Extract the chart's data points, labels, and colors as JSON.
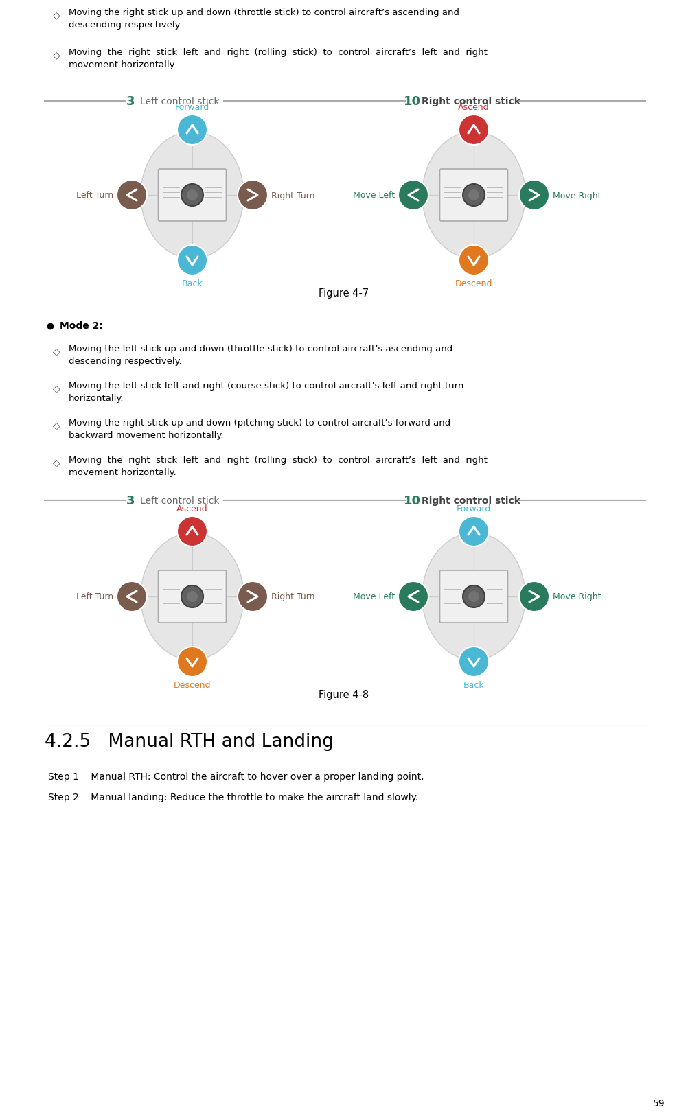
{
  "bg_color": "#ffffff",
  "page_number": "59",
  "text_color": "#000000",
  "figure47_caption": "Figure 4-7",
  "figure48_caption": "Figure 4-8",
  "mode2_label": "Mode 2:",
  "section_title": "4.2.5   Manual RTH and Landing",
  "step1": "Step 1    Manual RTH: Control the aircraft to hover over a proper landing point.",
  "step2": "Step 2    Manual landing: Reduce the throttle to make the aircraft land slowly.",
  "bullet_items_top": [
    [
      "Moving the right stick up and down (throttle stick) to control aircraft’s ascending and",
      "descending respectively."
    ],
    [
      "Moving  the  right  stick  left  and  right  (rolling  stick)  to  control  aircraft’s  left  and  right",
      "movement horizontally."
    ]
  ],
  "bullet_items_mode2": [
    [
      "Moving the left stick up and down (throttle stick) to control aircraft’s ascending and",
      "descending respectively."
    ],
    [
      "Moving the left stick left and right (course stick) to control aircraft’s left and right turn",
      "horizontally."
    ],
    [
      "Moving the right stick up and down (pitching stick) to control aircraft’s forward and",
      "backward movement horizontally."
    ],
    [
      "Moving  the  right  stick  left  and  right  (rolling  stick)  to  control  aircraft’s  left  and  right",
      "movement horizontally."
    ]
  ],
  "fig47": {
    "left_stick": {
      "top_label": "Forward",
      "top_color": "#4ab8d4",
      "bottom_label": "Back",
      "bottom_color": "#4ab8d4",
      "left_label": "Left Turn",
      "left_color": "#7a5c4e",
      "right_label": "Right Turn",
      "right_color": "#7a5c4e",
      "top_arrow_color": "#4ab8d4",
      "bottom_arrow_color": "#4ab8d4",
      "left_arrow_color": "#7a5c4e",
      "right_arrow_color": "#7a5c4e"
    },
    "right_stick": {
      "top_label": "Ascend",
      "top_color": "#cc3333",
      "bottom_label": "Descend",
      "bottom_color": "#e07820",
      "left_label": "Move Left",
      "left_color": "#2a7a5e",
      "right_label": "Move Right",
      "right_color": "#2a7a5e",
      "top_arrow_color": "#cc3333",
      "bottom_arrow_color": "#e07820",
      "left_arrow_color": "#2a7a5e",
      "right_arrow_color": "#2a7a5e"
    },
    "left_number": "3",
    "right_number": "10",
    "left_stick_label": "Left control stick",
    "right_stick_label": "Right control stick",
    "number_color": "#2a7a5e"
  },
  "fig48": {
    "left_stick": {
      "top_label": "Ascend",
      "top_color": "#cc3333",
      "bottom_label": "Descend",
      "bottom_color": "#e07820",
      "left_label": "Left Turn",
      "left_color": "#7a5c4e",
      "right_label": "Right Turn",
      "right_color": "#7a5c4e",
      "top_arrow_color": "#cc3333",
      "bottom_arrow_color": "#e07820",
      "left_arrow_color": "#7a5c4e",
      "right_arrow_color": "#7a5c4e"
    },
    "right_stick": {
      "top_label": "Forward",
      "top_color": "#4ab8d4",
      "bottom_label": "Back",
      "bottom_color": "#4ab8d4",
      "left_label": "Move Left",
      "left_color": "#2a7a5e",
      "right_label": "Move Right",
      "right_color": "#2a7a5e",
      "top_arrow_color": "#4ab8d4",
      "bottom_arrow_color": "#4ab8d4",
      "left_arrow_color": "#2a7a5e",
      "right_arrow_color": "#2a7a5e"
    },
    "left_number": "3",
    "right_number": "10",
    "left_stick_label": "Left control stick",
    "right_stick_label": "Right control stick",
    "number_color": "#2a7a5e"
  }
}
